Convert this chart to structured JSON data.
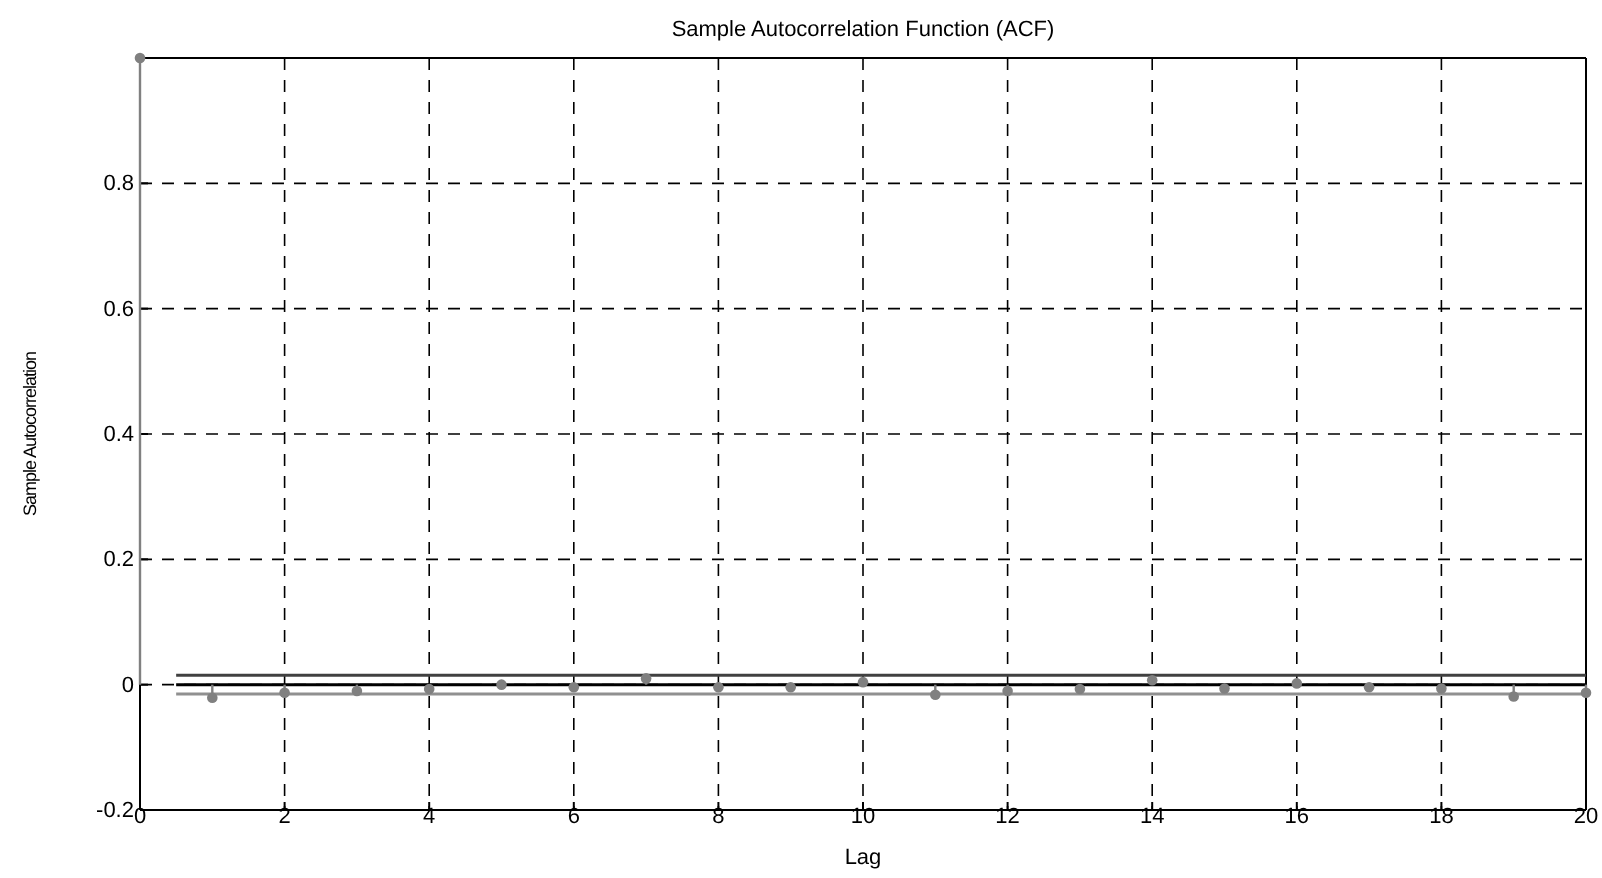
{
  "chart_data": {
    "type": "lollipop",
    "title": "Sample Autocorrelation Function (ACF)",
    "xlabel": "Lag",
    "ylabel": "Sample Autocorrelation",
    "x": [
      0,
      1,
      2,
      3,
      4,
      5,
      6,
      7,
      8,
      9,
      10,
      11,
      12,
      13,
      14,
      15,
      16,
      17,
      18,
      19,
      20
    ],
    "series": [
      {
        "color": "#808080",
        "values": [
          1,
          -0.021,
          -0.013,
          -0.01,
          -0.007,
          0,
          -0.004,
          0.01,
          -0.004,
          -0.004,
          0.004,
          -0.016,
          -0.01,
          -0.007,
          0.007,
          -0.006,
          0.002,
          -0.004,
          -0.006,
          -0.019,
          -0.013
        ]
      }
    ],
    "xlim": [
      0,
      20
    ],
    "xticks": [
      0,
      2,
      4,
      6,
      8,
      10,
      12,
      14,
      16,
      18,
      20
    ],
    "ylim": [
      -0.2,
      1
    ],
    "yticks": [
      -0.2,
      0,
      0.2,
      0.4,
      0.6,
      0.8
    ],
    "ref_lines": [
      {
        "axis": "y",
        "value": 0,
        "color": "#000000"
      },
      {
        "axis": "y",
        "value": 0.015,
        "color": "#404040"
      },
      {
        "axis": "y",
        "value": -0.015,
        "color": "#909090"
      }
    ],
    "grid": true,
    "marker": "circle"
  }
}
